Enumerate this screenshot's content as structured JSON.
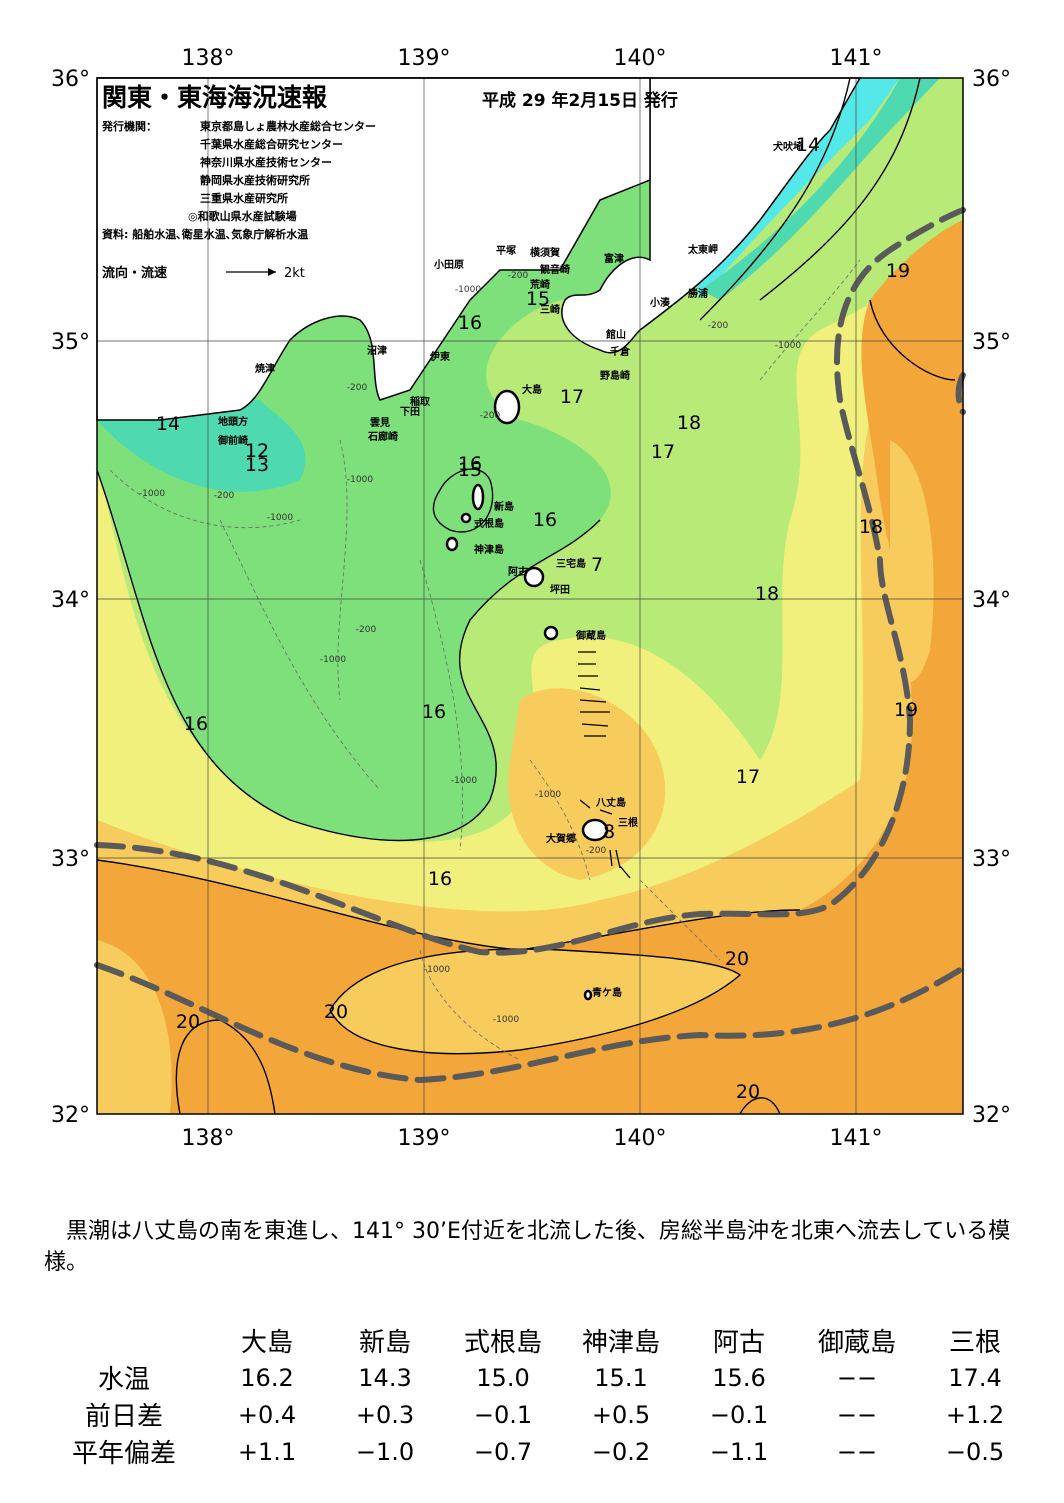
{
  "header": {
    "title": "関東・東海海況速報",
    "date": "平成 29 年2月15日 発行",
    "publisher_label": "発行機関：",
    "publishers": [
      "東京都島しょ農林水産総合センター",
      "千葉県水産総合研究センター",
      "神奈川県水産技術センター",
      "静岡県水産技術研究所",
      "三重県水産研究所",
      "◎和歌山県水産試験場"
    ],
    "source": "資料: 船舶水温､衛星水温､気象庁解析水温",
    "flow_legend_label": "流向・流速",
    "flow_legend_value": "2kt"
  },
  "axes": {
    "lon_labels": [
      "138°",
      "139°",
      "140°",
      "141°"
    ],
    "lat_labels": [
      "36°",
      "35°",
      "34°",
      "33°",
      "32°"
    ]
  },
  "isotherm_labels": [
    "14",
    "12",
    "13",
    "14",
    "15",
    "16",
    "15",
    "16",
    "17",
    "18",
    "17",
    "16",
    "7",
    "18",
    "18",
    "16",
    "16",
    "17",
    "19",
    "8",
    "16",
    "19",
    "20",
    "20",
    "20",
    "20"
  ],
  "depth_labels": [
    "-200",
    "-1000",
    "-200",
    "-1000",
    "-200",
    "-1000",
    "-200",
    "-1000",
    "-1000",
    "-200",
    "-1000",
    "-1000",
    "-1000",
    "-200",
    "-1000",
    "-1000",
    "-200"
  ],
  "places": [
    "犬吠埼",
    "太東岬",
    "勝浦",
    "小湊",
    "富津",
    "横須賀",
    "観音崎",
    "平塚",
    "荒崎",
    "三崎",
    "小田原",
    "館山",
    "千倉",
    "野島崎",
    "沼津",
    "伊東",
    "焼津",
    "稲取",
    "下田",
    "雲見",
    "石廊崎",
    "地頭方",
    "御前崎",
    "大島",
    "新島",
    "式根島",
    "神津島",
    "三宅島",
    "阿古",
    "坪田",
    "御蔵島",
    "八丈島",
    "三根",
    "大賀郷",
    "青ケ島"
  ],
  "colors": {
    "sea_cyan": "#55e8e8",
    "sea_teal": "#4fd9b0",
    "sea_green": "#7ee07a",
    "sea_lightgreen": "#b8ea78",
    "sea_yellow": "#f2f07c",
    "sea_lightorange": "#f7cc5c",
    "sea_orange": "#f3a63a",
    "kuroshio_axis": "#5a5a5a"
  },
  "summary": "黒潮は八丈島の南を東進し、141° 30’E付近を北流した後、房総半島沖を北東へ流去している模様。",
  "stats": {
    "columns": [
      "大島",
      "新島",
      "式根島",
      "神津島",
      "阿古",
      "御蔵島",
      "三根"
    ],
    "rows": [
      {
        "label": "水温",
        "values": [
          "16.2",
          "14.3",
          "15.0",
          "15.1",
          "15.6",
          "−−",
          "17.4"
        ]
      },
      {
        "label": "前日差",
        "values": [
          "+0.4",
          "+0.3",
          "−0.1",
          "+0.5",
          "−0.1",
          "−−",
          "+1.2"
        ]
      },
      {
        "label": "平年偏差",
        "values": [
          "+1.1",
          "−1.0",
          "−0.7",
          "−0.2",
          "−1.1",
          "−−",
          "−0.5"
        ]
      }
    ]
  }
}
